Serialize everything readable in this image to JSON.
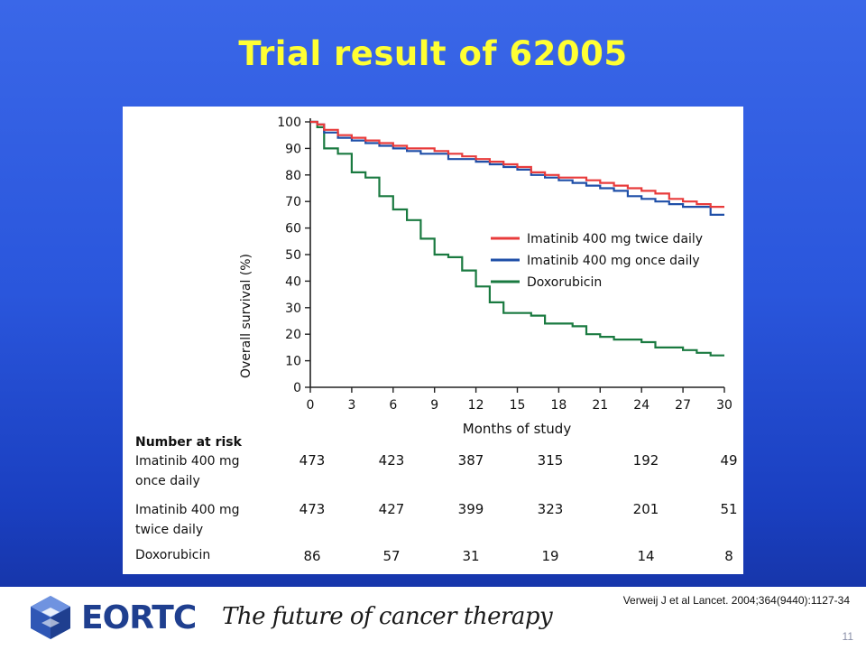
{
  "slide": {
    "title": "Trial result of 62005",
    "citation": "Verweij J et al Lancet. 2004;364(9440):1127-34",
    "page_number": "11",
    "brand": "EORTC",
    "tagline": "The future of cancer therapy"
  },
  "colors": {
    "title": "#ffff33",
    "series_twice": "#e83b3b",
    "series_once": "#1f4fa8",
    "series_doxo": "#1a7a40"
  },
  "chart_data": {
    "type": "line",
    "title": "",
    "xlabel": "Months of study",
    "ylabel": "Overall survival (%)",
    "xlim": [
      0,
      30
    ],
    "ylim": [
      0,
      100
    ],
    "xticks": [
      0,
      3,
      6,
      9,
      12,
      15,
      18,
      21,
      24,
      27,
      30
    ],
    "yticks": [
      0,
      10,
      20,
      30,
      40,
      50,
      60,
      70,
      80,
      90,
      100
    ],
    "grid": false,
    "legend_position": "right-middle",
    "series": [
      {
        "name": "Imatinib 400 mg twice daily",
        "color": "#e83b3b",
        "points": [
          [
            0,
            100
          ],
          [
            0.5,
            99
          ],
          [
            1,
            97
          ],
          [
            2,
            95
          ],
          [
            3,
            94
          ],
          [
            4,
            93
          ],
          [
            5,
            92
          ],
          [
            6,
            91
          ],
          [
            7,
            90
          ],
          [
            8,
            90
          ],
          [
            9,
            89
          ],
          [
            10,
            88
          ],
          [
            11,
            87
          ],
          [
            12,
            86
          ],
          [
            13,
            85
          ],
          [
            14,
            84
          ],
          [
            15,
            83
          ],
          [
            16,
            81
          ],
          [
            17,
            80
          ],
          [
            18,
            79
          ],
          [
            19,
            79
          ],
          [
            20,
            78
          ],
          [
            21,
            77
          ],
          [
            22,
            76
          ],
          [
            23,
            75
          ],
          [
            24,
            74
          ],
          [
            25,
            73
          ],
          [
            26,
            71
          ],
          [
            27,
            70
          ],
          [
            28,
            69
          ],
          [
            29,
            68
          ],
          [
            30,
            68
          ]
        ]
      },
      {
        "name": "Imatinib 400 mg once daily",
        "color": "#1f4fa8",
        "points": [
          [
            0,
            100
          ],
          [
            0.5,
            99
          ],
          [
            1,
            96
          ],
          [
            2,
            94
          ],
          [
            3,
            93
          ],
          [
            4,
            92
          ],
          [
            5,
            91
          ],
          [
            6,
            90
          ],
          [
            7,
            89
          ],
          [
            8,
            88
          ],
          [
            9,
            88
          ],
          [
            10,
            86
          ],
          [
            11,
            86
          ],
          [
            12,
            85
          ],
          [
            13,
            84
          ],
          [
            14,
            83
          ],
          [
            15,
            82
          ],
          [
            16,
            80
          ],
          [
            17,
            79
          ],
          [
            18,
            78
          ],
          [
            19,
            77
          ],
          [
            20,
            76
          ],
          [
            21,
            75
          ],
          [
            22,
            74
          ],
          [
            23,
            72
          ],
          [
            24,
            71
          ],
          [
            25,
            70
          ],
          [
            26,
            69
          ],
          [
            27,
            68
          ],
          [
            28,
            68
          ],
          [
            29,
            65
          ],
          [
            30,
            65
          ]
        ]
      },
      {
        "name": "Doxorubicin",
        "color": "#1a7a40",
        "points": [
          [
            0,
            100
          ],
          [
            0.5,
            98
          ],
          [
            1,
            90
          ],
          [
            2,
            88
          ],
          [
            3,
            81
          ],
          [
            4,
            79
          ],
          [
            5,
            72
          ],
          [
            6,
            67
          ],
          [
            7,
            63
          ],
          [
            8,
            56
          ],
          [
            9,
            50
          ],
          [
            10,
            49
          ],
          [
            11,
            44
          ],
          [
            12,
            38
          ],
          [
            13,
            32
          ],
          [
            14,
            28
          ],
          [
            15,
            28
          ],
          [
            16,
            27
          ],
          [
            17,
            24
          ],
          [
            18,
            24
          ],
          [
            19,
            23
          ],
          [
            20,
            20
          ],
          [
            21,
            19
          ],
          [
            22,
            18
          ],
          [
            23,
            18
          ],
          [
            24,
            17
          ],
          [
            25,
            15
          ],
          [
            26,
            15
          ],
          [
            27,
            14
          ],
          [
            28,
            13
          ],
          [
            29,
            12
          ],
          [
            30,
            12
          ]
        ]
      }
    ],
    "risk_table": {
      "header": "Number at risk",
      "timepoints": [
        0,
        6,
        12,
        18,
        24,
        30
      ],
      "rows": [
        {
          "label_line1": "Imatinib 400 mg",
          "label_line2": "once daily",
          "values": [
            "473",
            "423",
            "387",
            "315",
            "192",
            "49"
          ]
        },
        {
          "label_line1": "Imatinib 400 mg",
          "label_line2": "twice daily",
          "values": [
            "473",
            "427",
            "399",
            "323",
            "201",
            "51"
          ]
        },
        {
          "label_line1": "Doxorubicin",
          "label_line2": "",
          "values": [
            "86",
            "57",
            "31",
            "19",
            "14",
            "8"
          ]
        }
      ]
    }
  }
}
